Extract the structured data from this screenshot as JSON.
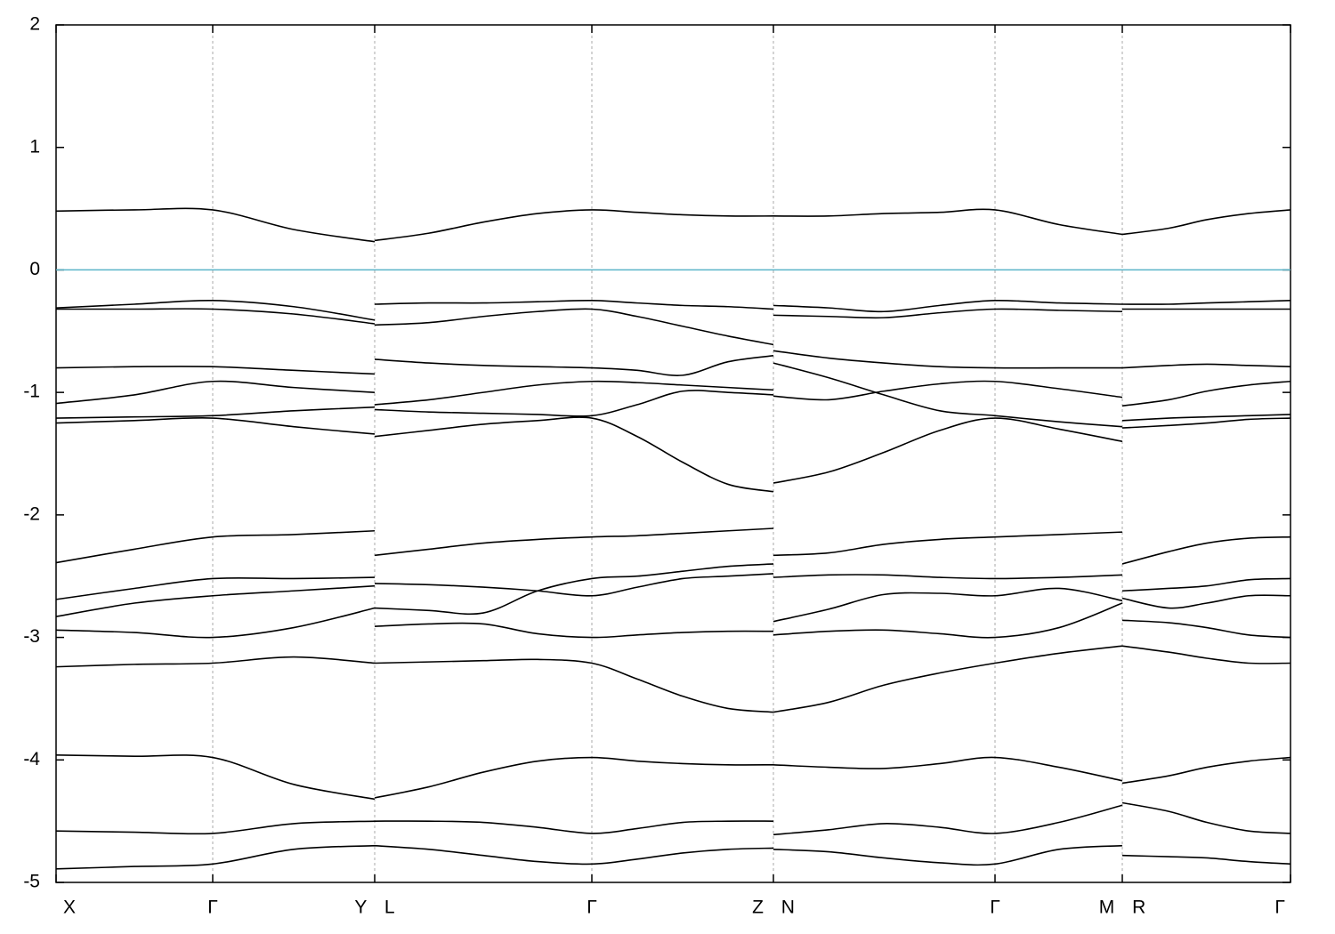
{
  "chart_data": {
    "type": "line",
    "xlim": [
      0,
      13.87
    ],
    "ylim": [
      -5,
      2
    ],
    "yticks": [
      -5,
      -4,
      -3,
      -2,
      -1,
      0,
      1,
      2
    ],
    "xticks": [
      {
        "value": 0,
        "label": "X"
      },
      {
        "value": 1.76,
        "label": "Γ"
      },
      {
        "value": 3.58,
        "label": "Y L"
      },
      {
        "value": 6.02,
        "label": "Γ"
      },
      {
        "value": 8.06,
        "label": "Z N"
      },
      {
        "value": 10.55,
        "label": "Γ"
      },
      {
        "value": 11.98,
        "label": "M R"
      },
      {
        "value": 13.87,
        "label": "Γ"
      }
    ],
    "xgrid": true,
    "fermi_level": 0,
    "fermi_color": "#5ab4c8",
    "x": [
      0,
      0.88,
      1.76,
      2.67,
      3.58,
      null,
      3.58,
      4.19,
      4.8,
      5.41,
      6.02,
      6.53,
      7.04,
      7.55,
      8.06,
      null,
      8.06,
      8.68,
      9.3,
      9.93,
      10.55,
      11.27,
      11.98,
      null,
      11.98,
      12.5,
      12.93,
      13.4,
      13.87
    ],
    "series": [
      {
        "color": "#000000",
        "values": [
          0.48,
          0.49,
          0.49,
          0.33,
          0.23,
          null,
          0.24,
          0.3,
          0.39,
          0.46,
          0.49,
          0.47,
          0.45,
          0.44,
          0.44,
          null,
          0.44,
          0.44,
          0.46,
          0.47,
          0.49,
          0.37,
          0.29,
          null,
          0.29,
          0.34,
          0.41,
          0.46,
          0.49
        ]
      },
      {
        "color": "#000000",
        "values": [
          -0.31,
          -0.28,
          -0.25,
          -0.3,
          -0.41,
          null,
          -0.28,
          -0.27,
          -0.27,
          -0.26,
          -0.25,
          -0.27,
          -0.29,
          -0.3,
          -0.32,
          null,
          -0.29,
          -0.31,
          -0.34,
          -0.29,
          -0.25,
          -0.27,
          -0.28,
          null,
          -0.28,
          -0.28,
          -0.27,
          -0.26,
          -0.25
        ]
      },
      {
        "color": "#000000",
        "values": [
          -0.32,
          -0.32,
          -0.32,
          -0.36,
          -0.44,
          null,
          -0.45,
          -0.43,
          -0.38,
          -0.34,
          -0.32,
          -0.38,
          -0.46,
          -0.54,
          -0.61,
          null,
          -0.37,
          -0.38,
          -0.39,
          -0.35,
          -0.32,
          -0.33,
          -0.34,
          null,
          -0.32,
          -0.32,
          -0.32,
          -0.32,
          -0.32
        ]
      },
      {
        "color": "#000000",
        "values": [
          -0.8,
          -0.79,
          -0.79,
          -0.82,
          -0.85,
          null,
          -0.73,
          -0.76,
          -0.78,
          -0.79,
          -0.8,
          -0.82,
          -0.86,
          -0.75,
          -0.7,
          null,
          -0.66,
          -0.72,
          -0.76,
          -0.79,
          -0.8,
          -0.8,
          -0.8,
          null,
          -0.8,
          -0.78,
          -0.77,
          -0.78,
          -0.79
        ]
      },
      {
        "color": "#000000",
        "values": [
          -1.09,
          -1.02,
          -0.91,
          -0.96,
          -1.0,
          null,
          -1.1,
          -1.06,
          -1.0,
          -0.94,
          -0.91,
          -0.92,
          -0.94,
          -0.96,
          -0.98,
          null,
          -1.03,
          -1.06,
          -0.99,
          -0.93,
          -0.91,
          -0.97,
          -1.04,
          null,
          -1.11,
          -1.06,
          -0.99,
          -0.94,
          -0.91
        ]
      },
      {
        "color": "#000000",
        "values": [
          -1.21,
          -1.2,
          -1.19,
          -1.15,
          -1.12,
          null,
          -1.14,
          -1.16,
          -1.17,
          -1.18,
          -1.19,
          -1.1,
          -0.99,
          -1.0,
          -1.02,
          null,
          -0.76,
          -0.88,
          -1.02,
          -1.15,
          -1.19,
          -1.24,
          -1.28,
          null,
          -1.23,
          -1.21,
          -1.2,
          -1.19,
          -1.18
        ]
      },
      {
        "color": "#000000",
        "values": [
          -1.25,
          -1.23,
          -1.21,
          -1.28,
          -1.34,
          null,
          -1.36,
          -1.31,
          -1.26,
          -1.23,
          -1.21,
          -1.36,
          -1.57,
          -1.75,
          -1.81,
          null,
          -1.74,
          -1.65,
          -1.49,
          -1.31,
          -1.21,
          -1.3,
          -1.4,
          null,
          -1.29,
          -1.27,
          -1.25,
          -1.22,
          -1.21
        ]
      },
      {
        "color": "#000000",
        "values": [
          -2.39,
          -2.28,
          -2.18,
          -2.16,
          -2.13,
          null,
          -2.33,
          -2.28,
          -2.23,
          -2.2,
          -2.18,
          -2.17,
          -2.15,
          -2.13,
          -2.11,
          null,
          -2.33,
          -2.31,
          -2.24,
          -2.2,
          -2.18,
          -2.16,
          -2.14,
          null,
          -2.4,
          -2.3,
          -2.23,
          -2.19,
          -2.18
        ]
      },
      {
        "color": "#000000",
        "values": [
          -2.69,
          -2.6,
          -2.52,
          -2.52,
          -2.51,
          null,
          -2.56,
          -2.57,
          -2.59,
          -2.62,
          -2.66,
          -2.59,
          -2.52,
          -2.5,
          -2.48,
          null,
          -2.51,
          -2.49,
          -2.49,
          -2.51,
          -2.52,
          -2.51,
          -2.49,
          null,
          -2.62,
          -2.6,
          -2.58,
          -2.53,
          -2.52
        ]
      },
      {
        "color": "#000000",
        "values": [
          -2.83,
          -2.72,
          -2.66,
          -2.62,
          -2.58,
          null,
          -2.76,
          -2.78,
          -2.8,
          -2.62,
          -2.52,
          -2.5,
          -2.46,
          -2.42,
          -2.4,
          null,
          -2.87,
          -2.77,
          -2.65,
          -2.64,
          -2.66,
          -2.6,
          -2.7,
          null,
          -2.68,
          -2.76,
          -2.72,
          -2.66,
          -2.66
        ]
      },
      {
        "color": "#000000",
        "values": [
          -2.94,
          -2.96,
          -3.0,
          -2.92,
          -2.76,
          null,
          -2.91,
          -2.89,
          -2.89,
          -2.97,
          -3.0,
          -2.98,
          -2.96,
          -2.95,
          -2.95,
          null,
          -2.98,
          -2.95,
          -2.94,
          -2.97,
          -3.0,
          -2.92,
          -2.72,
          null,
          -2.86,
          -2.88,
          -2.92,
          -2.98,
          -3.0
        ]
      },
      {
        "color": "#000000",
        "values": [
          -3.24,
          -3.22,
          -3.21,
          -3.16,
          -3.21,
          null,
          -3.21,
          -3.2,
          -3.19,
          -3.18,
          -3.21,
          -3.34,
          -3.48,
          -3.58,
          -3.61,
          null,
          -3.61,
          -3.53,
          -3.39,
          -3.29,
          -3.21,
          -3.13,
          -3.07,
          null,
          -3.07,
          -3.12,
          -3.17,
          -3.21,
          -3.21
        ]
      },
      {
        "color": "#000000",
        "values": [
          -3.96,
          -3.97,
          -3.98,
          -4.2,
          -4.32,
          null,
          -4.31,
          -4.22,
          -4.1,
          -4.01,
          -3.98,
          -4.01,
          -4.03,
          -4.04,
          -4.04,
          null,
          -4.04,
          -4.06,
          -4.07,
          -4.03,
          -3.98,
          -4.06,
          -4.17,
          null,
          -4.19,
          -4.13,
          -4.06,
          -4.01,
          -3.98
        ]
      },
      {
        "color": "#000000",
        "values": [
          -4.58,
          -4.59,
          -4.6,
          -4.52,
          -4.5,
          null,
          -4.5,
          -4.5,
          -4.51,
          -4.55,
          -4.6,
          -4.56,
          -4.51,
          -4.5,
          -4.5,
          null,
          -4.61,
          -4.57,
          -4.52,
          -4.55,
          -4.6,
          -4.51,
          -4.37,
          null,
          -4.35,
          -4.42,
          -4.51,
          -4.58,
          -4.6
        ]
      },
      {
        "color": "#000000",
        "values": [
          -4.89,
          -4.87,
          -4.85,
          -4.73,
          -4.7,
          null,
          -4.7,
          -4.73,
          -4.78,
          -4.83,
          -4.85,
          -4.81,
          -4.76,
          -4.73,
          -4.72,
          null,
          -4.73,
          -4.75,
          -4.8,
          -4.84,
          -4.85,
          -4.73,
          -4.7,
          null,
          -4.78,
          -4.79,
          -4.8,
          -4.83,
          -4.85
        ]
      }
    ]
  }
}
